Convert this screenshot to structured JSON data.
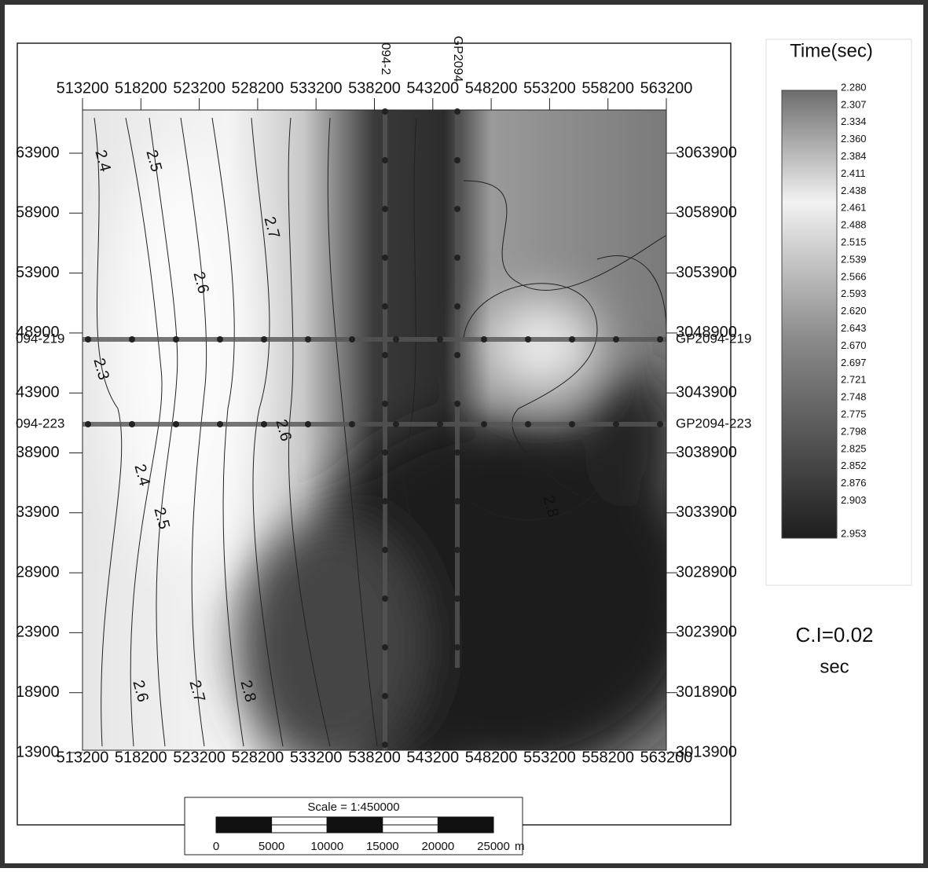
{
  "map": {
    "x_ticks": [
      "513200",
      "518200",
      "523200",
      "528200",
      "533200",
      "538200",
      "543200",
      "548200",
      "553200",
      "558200",
      "563200"
    ],
    "y_ticks_left": [
      "63900",
      "58900",
      "53900",
      "48900",
      "43900",
      "38900",
      "33900",
      "28900",
      "23900",
      "18900",
      "13900"
    ],
    "y_ticks_right": [
      "3063900",
      "3058900",
      "3053900",
      "3048900",
      "3043900",
      "3038900",
      "3033900",
      "3028900",
      "3023900",
      "3018900",
      "3013900"
    ],
    "line_labels_left": [
      "094-219",
      "094-223"
    ],
    "line_labels_right": [
      "GP2094-219",
      "GP2094-223"
    ],
    "line_labels_top": [
      "094-2",
      "GP2094"
    ],
    "contour_labels": [
      "2.4",
      "2.5",
      "2.7",
      "2.6",
      "2.3",
      "2.4",
      "2.5",
      "2.6",
      "2.7",
      "2.8",
      "2.8",
      "2.6"
    ]
  },
  "legend": {
    "title": "Time(sec)",
    "values": [
      "2.280",
      "2.307",
      "2.334",
      "2.360",
      "2.384",
      "2.411",
      "2.438",
      "2.461",
      "2.488",
      "2.515",
      "2.539",
      "2.566",
      "2.593",
      "2.620",
      "2.643",
      "2.670",
      "2.697",
      "2.721",
      "2.748",
      "2.775",
      "2.798",
      "2.825",
      "2.852",
      "2.876",
      "2.903",
      "2.953"
    ]
  },
  "scale": {
    "title": "Scale = 1:450000",
    "labels": [
      "0",
      "5000",
      "10000",
      "15000",
      "20000",
      "25000"
    ],
    "unit": "m"
  },
  "note": [
    "C.I=0.02",
    "sec"
  ]
}
